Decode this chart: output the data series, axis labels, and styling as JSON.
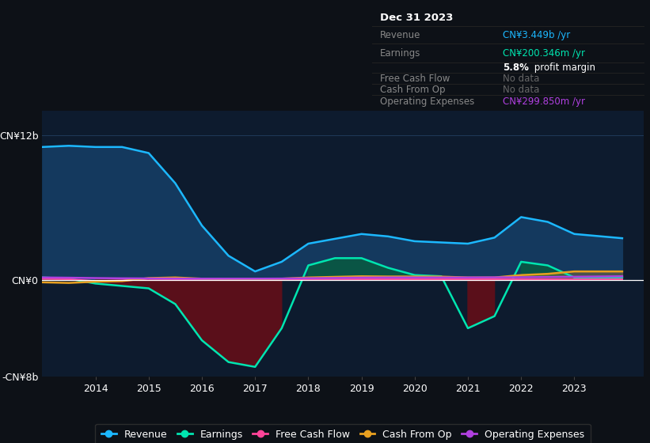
{
  "bg_color": "#0d1117",
  "plot_bg_color": "#0d1b2e",
  "grid_color": "#203a5a",
  "ylim": [
    -8000000000,
    14000000000
  ],
  "y_ticks": [
    -8000000000,
    0,
    12000000000
  ],
  "y_tick_labels": [
    "-CN¥8b",
    "CN¥0",
    "CN¥12b"
  ],
  "x_years": [
    2013.0,
    2013.5,
    2014.0,
    2014.5,
    2015.0,
    2015.5,
    2016.0,
    2016.5,
    2017.0,
    2017.5,
    2018.0,
    2018.5,
    2019.0,
    2019.5,
    2020.0,
    2020.5,
    2021.0,
    2021.5,
    2022.0,
    2022.5,
    2023.0,
    2023.9
  ],
  "revenue": [
    11000000000,
    11100000000,
    11000000000,
    11000000000,
    10500000000,
    8000000000,
    4500000000,
    2000000000,
    700000000,
    1500000000,
    3000000000,
    3400000000,
    3800000000,
    3600000000,
    3200000000,
    3100000000,
    3000000000,
    3500000000,
    5200000000,
    4800000000,
    3800000000,
    3449000000
  ],
  "earnings": [
    200000000,
    100000000,
    -300000000,
    -500000000,
    -700000000,
    -2000000000,
    -5000000000,
    -6800000000,
    -7200000000,
    -4000000000,
    1200000000,
    1800000000,
    1800000000,
    1000000000,
    400000000,
    300000000,
    -4000000000,
    -3000000000,
    1500000000,
    1200000000,
    200000000,
    200346000
  ],
  "free_cash_flow": [
    80000000,
    60000000,
    -100000000,
    -50000000,
    80000000,
    60000000,
    50000000,
    40000000,
    50000000,
    50000000,
    60000000,
    60000000,
    60000000,
    60000000,
    60000000,
    60000000,
    60000000,
    60000000,
    60000000,
    60000000,
    60000000,
    60000000
  ],
  "cash_from_op": [
    -200000000,
    -250000000,
    -150000000,
    -100000000,
    150000000,
    200000000,
    100000000,
    80000000,
    80000000,
    100000000,
    200000000,
    250000000,
    300000000,
    280000000,
    280000000,
    270000000,
    200000000,
    200000000,
    400000000,
    500000000,
    700000000,
    700000000
  ],
  "operating_expenses": [
    200000000,
    180000000,
    150000000,
    130000000,
    120000000,
    110000000,
    100000000,
    100000000,
    100000000,
    110000000,
    140000000,
    160000000,
    190000000,
    200000000,
    200000000,
    200000000,
    200000000,
    210000000,
    220000000,
    240000000,
    260000000,
    299850000
  ],
  "revenue_line_color": "#1cb8ff",
  "revenue_fill_color": "#14395e",
  "earnings_line_color": "#00e5b0",
  "earnings_fill_pos_color": "#0a5545",
  "earnings_fill_neg_color": "#5a0f1a",
  "free_cash_flow_color": "#ff4499",
  "cash_from_op_color": "#e8a020",
  "operating_expenses_color": "#b040e0",
  "info_box": {
    "title": "Dec 31 2023",
    "revenue_label": "Revenue",
    "revenue_value": "CN¥3.449b /yr",
    "revenue_color": "#1cb8ff",
    "earnings_label": "Earnings",
    "earnings_value": "CN¥200.346m /yr",
    "earnings_color": "#00e5b0",
    "margin_text": "5.8% profit margin",
    "fcf_label": "Free Cash Flow",
    "fcf_value": "No data",
    "cfop_label": "Cash From Op",
    "cfop_value": "No data",
    "opex_label": "Operating Expenses",
    "opex_value": "CN¥299.850m /yr",
    "opex_color": "#b040e0",
    "nodata_color": "#666666",
    "label_color": "#888888",
    "title_color": "#ffffff",
    "margin_bold_color": "#ffffff"
  }
}
